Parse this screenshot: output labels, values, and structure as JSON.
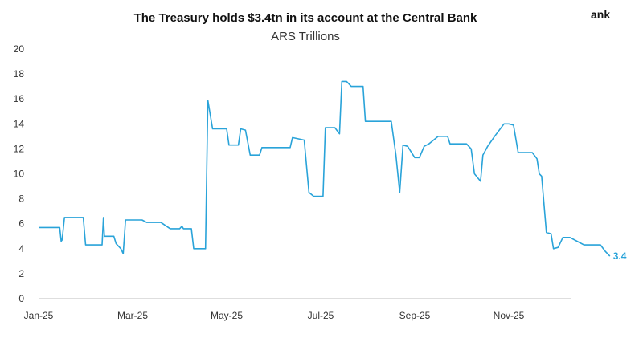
{
  "corner_text": "ank",
  "chart_data": {
    "type": "line",
    "title": "The Treasury holds $3.4tn in its account at the Central Bank",
    "subtitle": "ARS Trillions",
    "xlabel": "",
    "ylabel": "",
    "ylim": [
      0,
      20
    ],
    "yticks": [
      0,
      2,
      4,
      6,
      8,
      10,
      12,
      14,
      16,
      18,
      20
    ],
    "xticks": [
      {
        "label": "Jan-25",
        "t": 0
      },
      {
        "label": "Mar-25",
        "t": 2
      },
      {
        "label": "May-25",
        "t": 4
      },
      {
        "label": "Jul-25",
        "t": 6
      },
      {
        "label": "Sep-25",
        "t": 8
      },
      {
        "label": "Nov-25",
        "t": 10
      }
    ],
    "end_label": "3.4",
    "grid": false,
    "line_color": "#29a3d9",
    "series": [
      {
        "values": [
          [
            0.0,
            5.7
          ],
          [
            0.45,
            5.7
          ],
          [
            0.48,
            4.6
          ],
          [
            0.5,
            4.7
          ],
          [
            0.55,
            6.5
          ],
          [
            0.95,
            6.5
          ],
          [
            1.0,
            4.3
          ],
          [
            1.35,
            4.3
          ],
          [
            1.38,
            6.5
          ],
          [
            1.4,
            5.0
          ],
          [
            1.6,
            5.0
          ],
          [
            1.65,
            4.4
          ],
          [
            1.75,
            4.0
          ],
          [
            1.8,
            3.6
          ],
          [
            1.85,
            6.3
          ],
          [
            2.2,
            6.3
          ],
          [
            2.3,
            6.1
          ],
          [
            2.6,
            6.1
          ],
          [
            2.8,
            5.6
          ],
          [
            3.0,
            5.6
          ],
          [
            3.05,
            5.8
          ],
          [
            3.08,
            5.6
          ],
          [
            3.25,
            5.6
          ],
          [
            3.3,
            4.0
          ],
          [
            3.55,
            4.0
          ],
          [
            3.6,
            15.9
          ],
          [
            3.7,
            13.6
          ],
          [
            4.0,
            13.6
          ],
          [
            4.05,
            12.3
          ],
          [
            4.25,
            12.3
          ],
          [
            4.3,
            13.6
          ],
          [
            4.4,
            13.5
          ],
          [
            4.5,
            11.5
          ],
          [
            4.7,
            11.5
          ],
          [
            4.75,
            12.1
          ],
          [
            5.35,
            12.1
          ],
          [
            5.4,
            12.9
          ],
          [
            5.65,
            12.7
          ],
          [
            5.75,
            8.5
          ],
          [
            5.85,
            8.2
          ],
          [
            6.05,
            8.2
          ],
          [
            6.1,
            13.7
          ],
          [
            6.3,
            13.7
          ],
          [
            6.4,
            13.2
          ],
          [
            6.45,
            17.4
          ],
          [
            6.55,
            17.4
          ],
          [
            6.65,
            17.0
          ],
          [
            6.9,
            17.0
          ],
          [
            6.95,
            14.2
          ],
          [
            7.5,
            14.2
          ],
          [
            7.6,
            11.5
          ],
          [
            7.68,
            8.5
          ],
          [
            7.75,
            12.3
          ],
          [
            7.85,
            12.2
          ],
          [
            8.0,
            11.3
          ],
          [
            8.1,
            11.3
          ],
          [
            8.2,
            12.2
          ],
          [
            8.3,
            12.4
          ],
          [
            8.5,
            13.0
          ],
          [
            8.7,
            13.0
          ],
          [
            8.75,
            12.4
          ],
          [
            9.1,
            12.4
          ],
          [
            9.2,
            12.0
          ],
          [
            9.27,
            10.0
          ],
          [
            9.4,
            9.4
          ],
          [
            9.45,
            11.5
          ],
          [
            9.55,
            12.2
          ],
          [
            9.7,
            13.0
          ],
          [
            9.9,
            14.0
          ],
          [
            10.0,
            14.0
          ],
          [
            10.1,
            13.9
          ],
          [
            10.2,
            11.7
          ],
          [
            10.5,
            11.7
          ],
          [
            10.6,
            11.2
          ],
          [
            10.65,
            10.0
          ],
          [
            10.7,
            9.8
          ],
          [
            10.8,
            5.3
          ],
          [
            10.9,
            5.2
          ],
          [
            10.95,
            4.0
          ],
          [
            11.05,
            4.1
          ],
          [
            11.15,
            4.9
          ],
          [
            11.3,
            4.9
          ],
          [
            11.5,
            4.5
          ],
          [
            11.6,
            4.3
          ],
          [
            11.95,
            4.3
          ],
          [
            12.05,
            3.8
          ],
          [
            12.15,
            3.4
          ]
        ]
      }
    ]
  }
}
